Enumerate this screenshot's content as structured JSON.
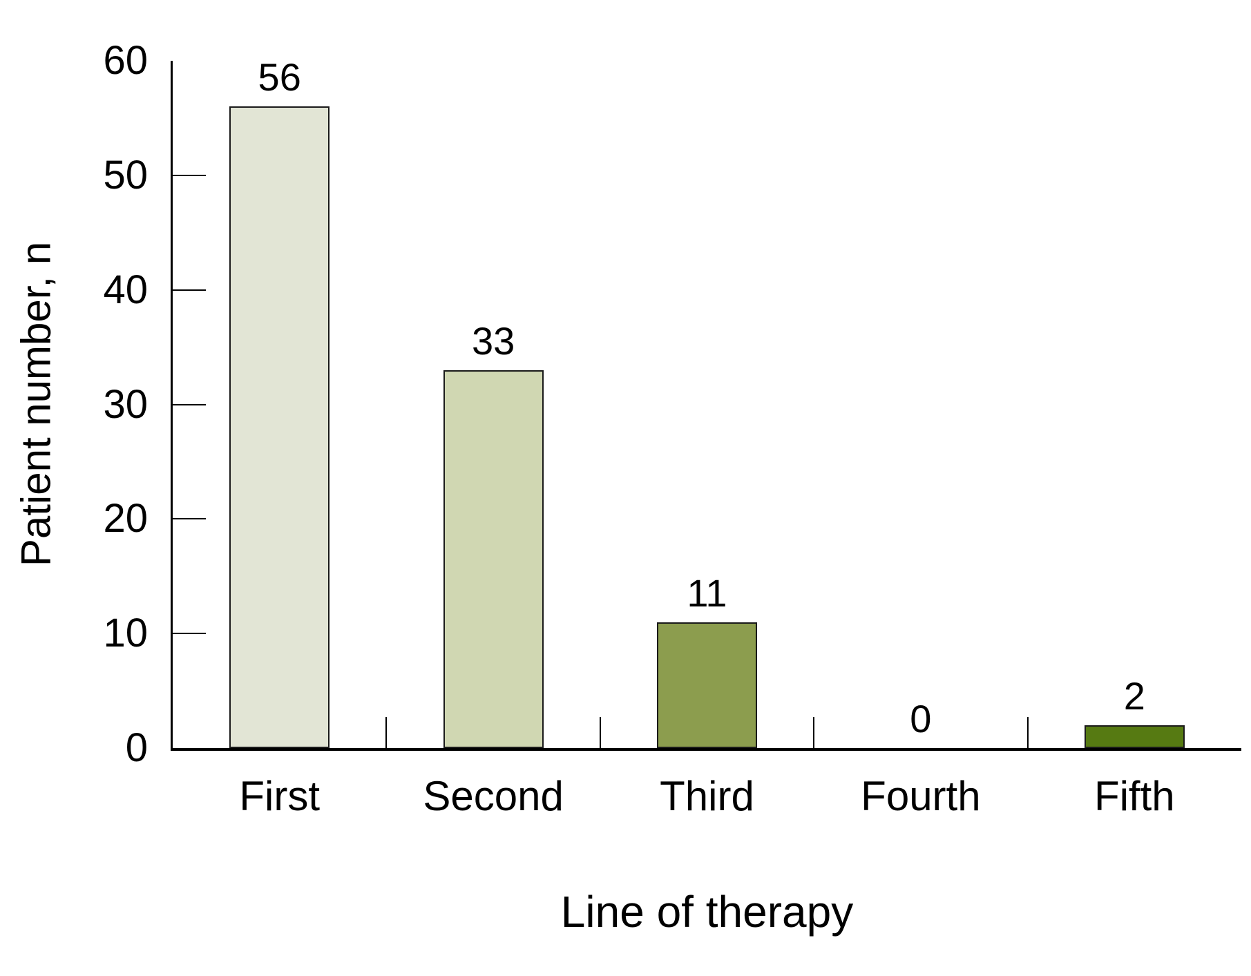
{
  "chart_data": {
    "type": "bar",
    "title": "",
    "categories": [
      "First",
      "Second",
      "Third",
      "Fourth",
      "Fifth"
    ],
    "values": [
      56,
      33,
      11,
      0,
      2
    ],
    "value_labels": [
      "56",
      "33",
      "11",
      "0",
      "2"
    ],
    "xlabel": "Line of therapy",
    "ylabel": "Patient number, n",
    "ylim": [
      0,
      60
    ],
    "yticks": [
      0,
      10,
      20,
      30,
      40,
      50,
      60
    ],
    "bar_colors": [
      "#e2e5d5",
      "#d0d7b2",
      "#8c9d4e",
      null,
      "#567a12"
    ],
    "bar_border_color": "#1a1a1a",
    "axis_color": "#000000",
    "grid": false,
    "legend_position": "none"
  }
}
